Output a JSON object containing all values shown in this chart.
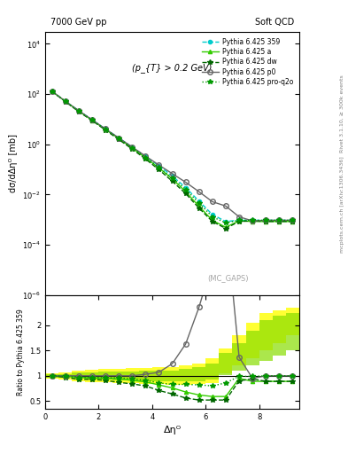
{
  "title_left": "7000 GeV pp",
  "title_right": "Soft QCD",
  "annotation": "(p_{T} > 0.2 GeV)",
  "watermark": "(MC_GAPS)",
  "ylabel_main": "dσ/dΔηᴼ [mb]",
  "ylabel_ratio": "Ratio to Pythia 6.425 359",
  "xlabel": "Δηᴼ",
  "right_label": "Rivet 3.1.10, ≥ 300k events",
  "right_label2": "mcplots.cern.ch [arXiv:1306.3436]",
  "xmin": 0,
  "xmax": 9.5,
  "ylim_main": [
    1e-06,
    30000.0
  ],
  "ylim_ratio": [
    0.35,
    2.6
  ],
  "series": [
    {
      "label": "Pythia 6.425 359",
      "color": "#00CCCC",
      "linestyle": "--",
      "marker": "o",
      "markersize": 3,
      "linewidth": 1.0
    },
    {
      "label": "Pythia 6.425 a",
      "color": "#33CC00",
      "linestyle": "-",
      "marker": "^",
      "markersize": 3,
      "linewidth": 1.0
    },
    {
      "label": "Pythia 6.425 dw",
      "color": "#006600",
      "linestyle": "--",
      "marker": "*",
      "markersize": 4,
      "linewidth": 1.0
    },
    {
      "label": "Pythia 6.425 p0",
      "color": "#666666",
      "linestyle": "-",
      "marker": "o",
      "markersize": 4,
      "linewidth": 1.0,
      "markerfacecolor": "none"
    },
    {
      "label": "Pythia 6.425 pro-q2o",
      "color": "#009900",
      "linestyle": ":",
      "marker": "*",
      "markersize": 4,
      "linewidth": 1.0
    }
  ],
  "x_main": [
    0.25,
    0.75,
    1.25,
    1.75,
    2.25,
    2.75,
    3.25,
    3.75,
    4.25,
    4.75,
    5.25,
    5.75,
    6.25,
    6.75,
    7.25,
    7.75,
    8.25,
    8.75,
    9.25
  ],
  "y_359": [
    130,
    52,
    22,
    9.5,
    4.1,
    1.8,
    0.78,
    0.33,
    0.14,
    0.055,
    0.019,
    0.0055,
    0.0016,
    0.00085,
    0.00095,
    0.00095,
    0.00095,
    0.00095,
    0.00095
  ],
  "y_a": [
    128,
    51,
    21,
    9.1,
    3.9,
    1.7,
    0.71,
    0.29,
    0.115,
    0.042,
    0.013,
    0.0034,
    0.00095,
    0.0005,
    0.0009,
    0.00085,
    0.00085,
    0.00085,
    0.00085
  ],
  "y_dw": [
    129,
    50,
    20,
    8.8,
    3.7,
    1.55,
    0.65,
    0.26,
    0.098,
    0.034,
    0.011,
    0.0029,
    0.00085,
    0.00045,
    0.00085,
    0.0009,
    0.00085,
    0.00085,
    0.00085
  ],
  "y_p0": [
    130,
    52,
    22,
    9.5,
    4.1,
    1.8,
    0.78,
    0.34,
    0.15,
    0.068,
    0.031,
    0.013,
    0.0052,
    0.0035,
    0.0013,
    0.0009,
    0.00095,
    0.00095,
    0.00095
  ],
  "y_proq2o": [
    128,
    51,
    21,
    9.2,
    3.95,
    1.72,
    0.73,
    0.3,
    0.12,
    0.046,
    0.016,
    0.0046,
    0.0013,
    0.00075,
    0.00095,
    0.00095,
    0.00095,
    0.00095,
    0.00095
  ],
  "ratio_a": [
    1.0,
    1.0,
    0.97,
    0.96,
    0.95,
    0.94,
    0.91,
    0.88,
    0.82,
    0.76,
    0.68,
    0.62,
    0.59,
    0.59,
    0.95,
    0.89,
    0.89,
    0.89,
    0.89
  ],
  "ratio_dw": [
    1.0,
    0.97,
    0.93,
    0.93,
    0.91,
    0.87,
    0.84,
    0.8,
    0.71,
    0.64,
    0.56,
    0.52,
    0.52,
    0.52,
    0.9,
    0.94,
    0.89,
    0.89,
    0.89
  ],
  "ratio_p0": [
    1.0,
    1.0,
    1.0,
    1.0,
    1.0,
    1.0,
    1.0,
    1.03,
    1.07,
    1.24,
    1.63,
    2.36,
    3.25,
    4.12,
    1.37,
    0.95,
    1.0,
    1.0,
    1.0
  ],
  "ratio_proq2o": [
    1.0,
    0.99,
    0.97,
    0.97,
    0.96,
    0.96,
    0.94,
    0.91,
    0.86,
    0.83,
    0.83,
    0.82,
    0.8,
    0.86,
    0.99,
    0.99,
    1.0,
    1.0,
    1.0
  ],
  "band_yellow_lo": [
    0.95,
    0.93,
    0.9,
    0.88,
    0.87,
    0.86,
    0.85,
    0.84,
    0.83,
    0.82,
    0.82,
    0.83,
    0.85,
    1.05,
    1.2,
    1.35,
    1.5,
    1.65,
    1.8
  ],
  "band_yellow_hi": [
    1.05,
    1.07,
    1.1,
    1.12,
    1.13,
    1.14,
    1.15,
    1.16,
    1.17,
    1.18,
    1.2,
    1.25,
    1.35,
    1.55,
    1.8,
    2.05,
    2.25,
    2.3,
    2.35
  ],
  "band_green_lo": [
    0.97,
    0.96,
    0.94,
    0.93,
    0.92,
    0.91,
    0.91,
    0.9,
    0.89,
    0.89,
    0.89,
    0.9,
    0.92,
    1.02,
    1.1,
    1.2,
    1.3,
    1.4,
    1.5
  ],
  "band_green_hi": [
    1.03,
    1.04,
    1.06,
    1.07,
    1.08,
    1.09,
    1.09,
    1.1,
    1.11,
    1.11,
    1.13,
    1.17,
    1.25,
    1.45,
    1.65,
    1.9,
    2.1,
    2.2,
    2.25
  ]
}
